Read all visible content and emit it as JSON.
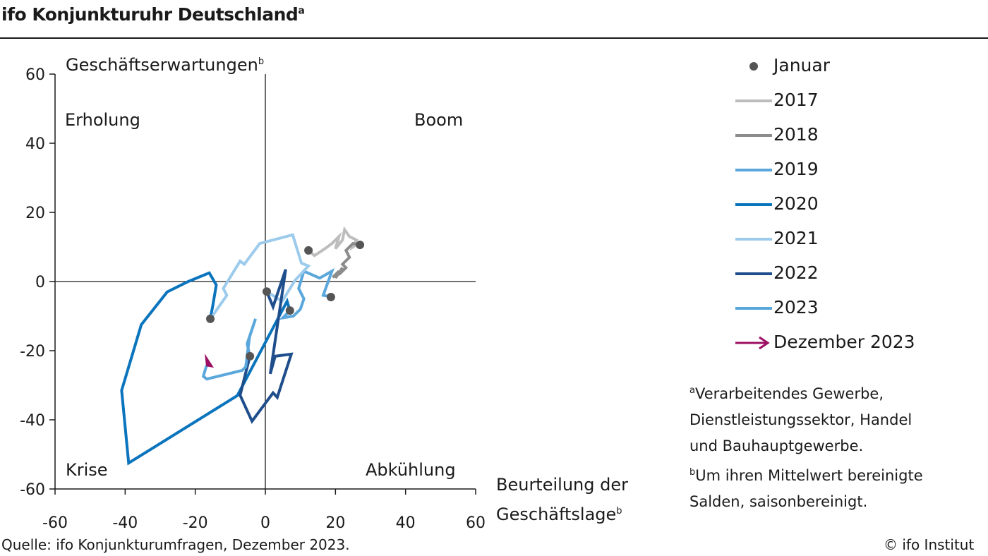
{
  "header": {
    "title": "ifo Konjunkturuhr Deutschland",
    "title_sup": "a"
  },
  "chart_data": {
    "type": "line",
    "title": "ifo Konjunkturuhr Deutschland",
    "xlabel": "Beurteilung der Geschäftslage",
    "xlabel_line1": "Beurteilung der",
    "xlabel_line2": "Geschäftslage",
    "xlabel_sup": "b",
    "ylabel": "Geschäftserwartungen",
    "ylabel_sup": "b",
    "xlim": [
      -60,
      60
    ],
    "ylim": [
      -60,
      60
    ],
    "xticks": [
      -60,
      -40,
      -20,
      0,
      20,
      40,
      60
    ],
    "yticks": [
      60,
      40,
      20,
      0,
      -20,
      -40,
      -60
    ],
    "quadrants": {
      "top_left": "Erholung",
      "top_right": "Boom",
      "bottom_left": "Krise",
      "bottom_right": "Abkühlung"
    },
    "series": [
      {
        "name": "2017",
        "color": "#bdbdbd",
        "points": [
          [
            12.3,
            9
          ],
          [
            14,
            7.5
          ],
          [
            17,
            9.5
          ],
          [
            19,
            11
          ],
          [
            21,
            13
          ],
          [
            20,
            9.5
          ],
          [
            22,
            12
          ],
          [
            22.6,
            15
          ],
          [
            24,
            13
          ],
          [
            26,
            12
          ],
          [
            25,
            10
          ],
          [
            26.5,
            11
          ]
        ]
      },
      {
        "name": "2018",
        "color": "#8c8c8c",
        "points": [
          [
            27,
            10.6
          ],
          [
            25,
            11
          ],
          [
            23,
            9
          ],
          [
            24,
            7
          ],
          [
            22,
            5
          ],
          [
            23,
            4
          ],
          [
            21,
            2
          ],
          [
            22,
            4
          ],
          [
            20,
            1
          ],
          [
            21,
            3
          ],
          [
            19.5,
            1.5
          ],
          [
            19.3,
            1.8
          ]
        ]
      },
      {
        "name": "2019",
        "color": "#5aa7dc",
        "points": [
          [
            18.7,
            -4.5
          ],
          [
            17.6,
            -4.2
          ],
          [
            16.5,
            -4
          ],
          [
            19,
            3
          ],
          [
            15.5,
            1
          ],
          [
            11,
            3
          ],
          [
            9.5,
            -2
          ],
          [
            11,
            -5
          ],
          [
            10,
            -8
          ],
          [
            8,
            -10
          ],
          [
            5,
            -10.5
          ],
          [
            7,
            -8.4
          ]
        ]
      },
      {
        "name": "2020",
        "color": "#0a74bd",
        "points": [
          [
            7,
            -8.4
          ],
          [
            6.2,
            -5.7
          ],
          [
            -8,
            -33
          ],
          [
            -39,
            -52.5
          ],
          [
            -41,
            -31.5
          ],
          [
            -35.4,
            -12.5
          ],
          [
            -28,
            -3
          ],
          [
            -22,
            0
          ],
          [
            -16,
            2.5
          ],
          [
            -14,
            -1
          ],
          [
            -15,
            -7
          ],
          [
            -15.7,
            -10.8
          ]
        ]
      },
      {
        "name": "2021",
        "color": "#9dcbec",
        "points": [
          [
            -15.7,
            -10.8
          ],
          [
            -11,
            -4
          ],
          [
            -12,
            -2
          ],
          [
            -7.2,
            5.9
          ],
          [
            -6,
            5
          ],
          [
            -1.6,
            11
          ],
          [
            7.8,
            13.5
          ],
          [
            10.3,
            5.3
          ],
          [
            12.3,
            4.5
          ],
          [
            8.5,
            0.4
          ],
          [
            4.8,
            -5.7
          ],
          [
            0.4,
            -2.9
          ]
        ]
      },
      {
        "name": "2022",
        "color": "#1f4e8c",
        "points": [
          [
            0.4,
            -2.9
          ],
          [
            2.2,
            -7.3
          ],
          [
            5.8,
            3.5
          ],
          [
            1.4,
            -26.7
          ],
          [
            2.8,
            -21.6
          ],
          [
            7.4,
            -21
          ],
          [
            3.4,
            -33.5
          ],
          [
            2.2,
            -32.2
          ],
          [
            -3.8,
            -40.4
          ],
          [
            -7.2,
            -32.9
          ],
          [
            -6,
            -28
          ],
          [
            -4.4,
            -21.6
          ]
        ]
      },
      {
        "name": "2023",
        "color": "#5aa7dc",
        "points": [
          [
            -4.4,
            -21.6
          ],
          [
            -5.2,
            -18
          ],
          [
            -2.8,
            -10.8
          ],
          [
            -4.5,
            -16
          ],
          [
            -5.6,
            -24.7
          ],
          [
            -6.6,
            -25.7
          ],
          [
            -16.7,
            -28.2
          ],
          [
            -17.7,
            -27.4
          ],
          [
            -16.9,
            -24.7
          ],
          [
            -16.3,
            -23.7
          ]
        ]
      }
    ],
    "january_points": [
      [
        12.3,
        9
      ],
      [
        27,
        10.6
      ],
      [
        18.7,
        -4.5
      ],
      [
        7,
        -8.4
      ],
      [
        -15.7,
        -10.8
      ],
      [
        0.4,
        -2.9
      ],
      [
        -4.4,
        -21.6
      ]
    ],
    "december_2023": {
      "point": [
        -16.3,
        -23.7
      ],
      "color": "#9c0f63"
    },
    "legend": {
      "placement": "right",
      "entries": [
        "Januar",
        "2017",
        "2018",
        "2019",
        "2020",
        "2021",
        "2022",
        "2023",
        "Dezember 2023"
      ],
      "marker_color": "#555555"
    }
  },
  "footnotes": {
    "a_sup": "a",
    "a_lines": [
      "Verarbeitendes  Gewerbe,",
      "Dienstleistungssektor,  Handel",
      "und Bauhauptgewerbe."
    ],
    "b_sup": "b",
    "b_lines": [
      "Um ihren Mittelwert bereinigte",
      "Salden, saisonbereinigt."
    ]
  },
  "footer": {
    "source": "Quelle: ifo Konjunkturumfragen, Dezember 2023.",
    "copyright": "© ifo Institut"
  }
}
